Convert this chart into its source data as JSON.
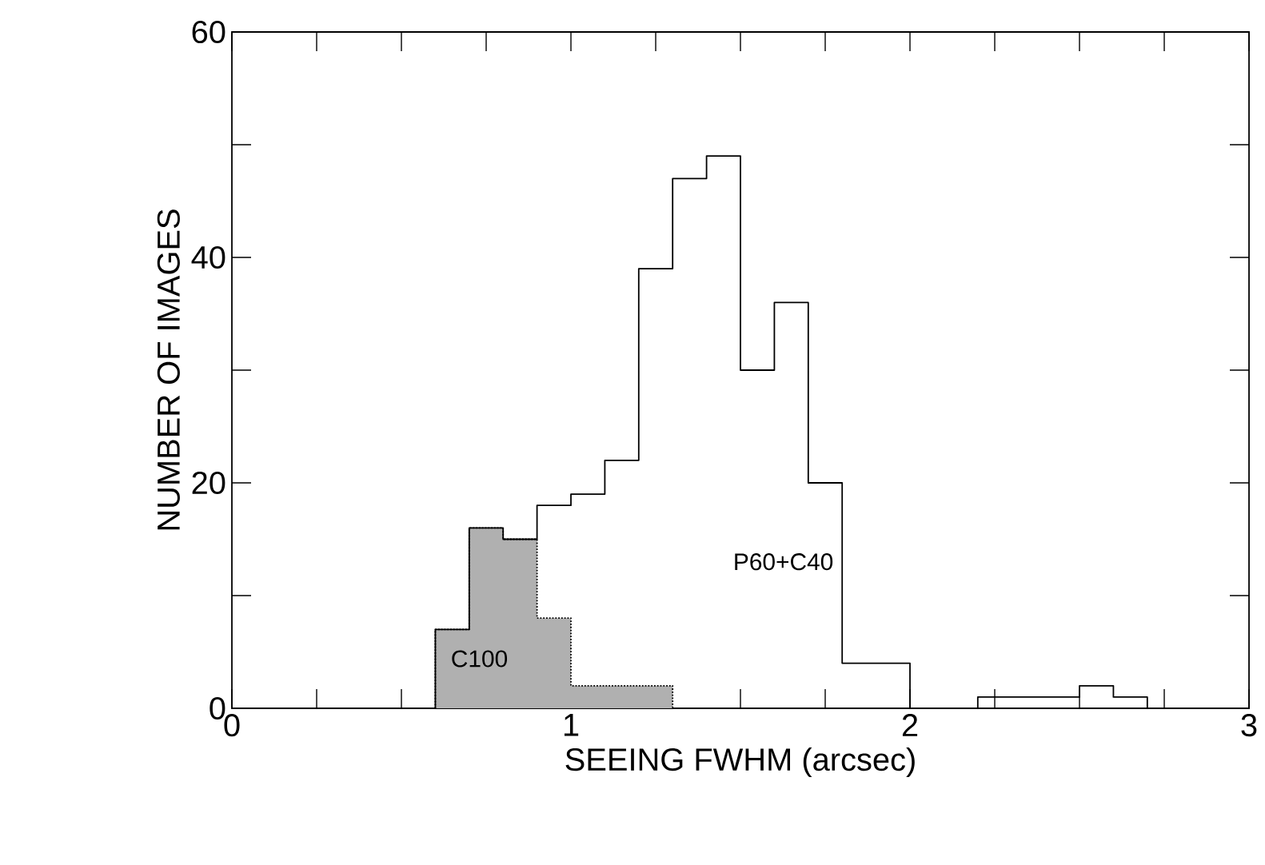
{
  "chart_data": {
    "type": "histogram",
    "xlabel": "SEEING FWHM (arcsec)",
    "ylabel": "NUMBER OF IMAGES",
    "bins": [
      0.6,
      0.7,
      0.8,
      0.9,
      1.0,
      1.1,
      1.2,
      1.3,
      1.4,
      1.5,
      1.6,
      1.7,
      1.8,
      1.9,
      2.0,
      2.1,
      2.2,
      2.3,
      2.4,
      2.5,
      2.6,
      2.7
    ],
    "series": [
      {
        "name": "P60+C40",
        "color": "#000000",
        "line_style": "solid",
        "values": [
          7,
          16,
          15,
          18,
          19,
          22,
          39,
          47,
          49,
          30,
          36,
          20,
          4,
          4,
          0,
          0,
          1,
          1,
          1,
          2,
          1
        ]
      },
      {
        "name": "C100",
        "color": "#b0b0b0",
        "line_style": "dotted",
        "bins": [
          0.6,
          0.7,
          0.8,
          0.9,
          1.0,
          1.1,
          1.2,
          1.3
        ],
        "values": [
          7,
          16,
          15,
          8,
          2,
          2,
          2
        ]
      }
    ],
    "xlim": [
      0,
      3
    ],
    "ylim": [
      0,
      60
    ],
    "xticks": [
      0,
      {
        "value": 0.25,
        "label": null
      },
      {
        "value": 0.5,
        "label": null
      },
      {
        "value": 0.75,
        "label": null
      },
      1,
      {
        "value": 1.25,
        "label": null
      },
      {
        "value": 1.5,
        "label": null
      },
      {
        "value": 1.75,
        "label": null
      },
      2,
      {
        "value": 2.25,
        "label": null
      },
      {
        "value": 2.5,
        "label": null
      },
      {
        "value": 2.75,
        "label": null
      },
      3
    ],
    "yticks": [
      0,
      {
        "value": 10,
        "label": null
      },
      20,
      {
        "value": 30,
        "label": null
      },
      40,
      {
        "value": 50,
        "label": null
      },
      60
    ]
  }
}
